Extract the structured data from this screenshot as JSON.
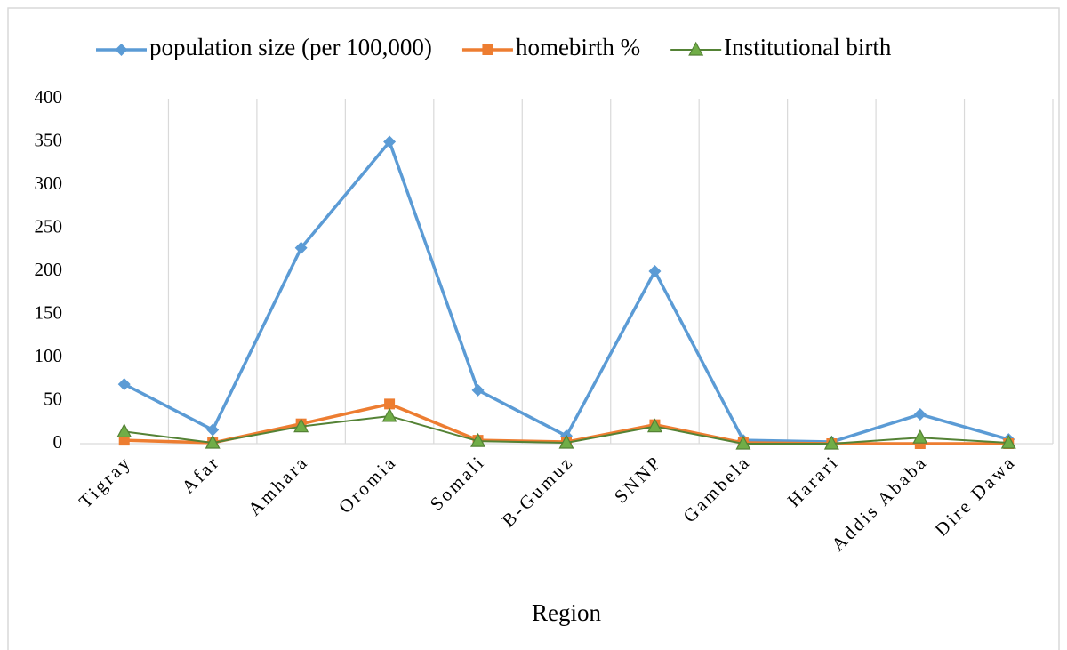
{
  "chart_data": {
    "type": "line",
    "x_label": "Region",
    "categories": [
      "Tigray",
      "Afar",
      "Amhara",
      "Oromia",
      "Somali",
      "B-Gumuz",
      "SNNP",
      "Gambela",
      "Harari",
      "Addis Ababa",
      "Dire Dawa"
    ],
    "series": [
      {
        "name": "population size (per 100,000)",
        "color": "#5b9bd5",
        "marker": "diamond",
        "values": [
          69,
          16,
          227,
          350,
          62,
          9,
          200,
          4,
          2,
          34,
          5
        ]
      },
      {
        "name": "homebirth %",
        "color": "#ed7d31",
        "marker": "square",
        "values": [
          4,
          1,
          23,
          46,
          4,
          2,
          22,
          1,
          0,
          0,
          0
        ]
      },
      {
        "name": "Institutional birth",
        "color": "#548235",
        "marker": "triangle",
        "values": [
          14,
          1,
          20,
          32,
          3,
          1,
          20,
          0,
          0,
          7,
          1
        ]
      }
    ],
    "ylim": [
      0,
      400
    ],
    "yticks": [
      0,
      50,
      100,
      150,
      200,
      250,
      300,
      350,
      400
    ],
    "grid": true,
    "legend": "top"
  }
}
